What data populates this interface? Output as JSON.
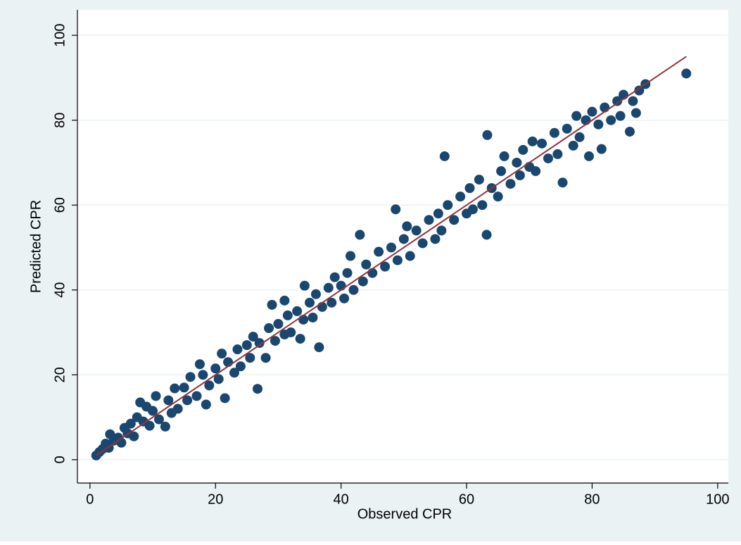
{
  "chart_data": {
    "type": "scatter",
    "x_label": "Observed CPR",
    "y_label": "Predicted CPR",
    "xlim": [
      -2,
      101.7
    ],
    "ylim": [
      -5.5,
      106
    ],
    "xticks": [
      0,
      20,
      40,
      60,
      80,
      100
    ],
    "yticks": [
      0,
      20,
      40,
      60,
      80,
      100
    ],
    "grid": true,
    "background": "#eaf2f3",
    "grid_color": "#eaf2f3",
    "series": [
      {
        "draw": "points",
        "color": "#1a476f",
        "x": [
          1,
          1.5,
          2,
          2.5,
          3,
          3.2,
          3.8,
          4.5,
          5,
          5.5,
          6,
          6.5,
          7,
          7.5,
          8,
          8.5,
          9,
          9.5,
          10,
          10.5,
          11,
          12,
          12.5,
          13,
          13.5,
          14,
          15,
          15.5,
          16,
          17,
          17.5,
          18,
          18.5,
          19,
          20,
          20.5,
          21,
          21.5,
          22,
          23,
          23.5,
          24,
          25,
          25.5,
          26,
          26.7,
          27,
          28,
          28.5,
          29,
          29.5,
          30,
          31,
          31.5,
          31,
          32,
          33,
          33.5,
          34,
          34.2,
          35,
          35.5,
          36,
          36.5,
          37,
          38,
          38.5,
          39,
          40,
          40.5,
          41,
          41.5,
          42,
          43,
          43.5,
          44,
          45,
          46,
          47,
          48,
          48.7,
          49,
          50,
          50.5,
          51,
          52,
          53,
          54,
          55,
          55.5,
          56.5,
          56,
          57,
          58,
          59,
          60,
          60.5,
          61,
          62,
          62.5,
          63.2,
          63.3,
          64,
          65,
          65.5,
          66,
          67,
          68,
          68.5,
          69,
          70,
          70.5,
          71,
          72,
          73,
          74,
          74.5,
          75.3,
          76,
          77,
          77.5,
          78,
          79,
          79.5,
          80,
          81,
          81.5,
          82,
          83,
          84,
          84.5,
          85,
          86,
          86.5,
          87,
          87.5,
          88.5,
          95
        ],
        "values": [
          1,
          1.8,
          2.5,
          3.8,
          2.8,
          6,
          4.5,
          5.2,
          4,
          7.5,
          6.2,
          8.5,
          5.5,
          10,
          13.5,
          9,
          12.5,
          8,
          11.5,
          15,
          9.5,
          7.8,
          14,
          11,
          16.8,
          12,
          17,
          14,
          19.5,
          15,
          22.5,
          20,
          13,
          17.5,
          21.5,
          19,
          25,
          14.5,
          23,
          20.5,
          26,
          22,
          27,
          24,
          29,
          16.7,
          27.5,
          24,
          31,
          36.5,
          28,
          32,
          29.5,
          34,
          37.5,
          30,
          35,
          28.5,
          33,
          41,
          37,
          33.5,
          39,
          26.5,
          36,
          40.5,
          37,
          43,
          41,
          38,
          44,
          48,
          40,
          53,
          42,
          46,
          44,
          49,
          45.5,
          50,
          59,
          47,
          52,
          55,
          48,
          54,
          51,
          56.5,
          52,
          58,
          71.5,
          54,
          60,
          56.5,
          62,
          58,
          64,
          59,
          66,
          60,
          53,
          76.5,
          64,
          62,
          68,
          71.5,
          65,
          70,
          67,
          73,
          69,
          75,
          68,
          74.5,
          71,
          77,
          72,
          65.3,
          78,
          74,
          81,
          76,
          80,
          71.5,
          82,
          79,
          73.2,
          83,
          80,
          84.5,
          81,
          86,
          77.3,
          84.5,
          81.7,
          87,
          88.5,
          91
        ]
      },
      {
        "draw": "line",
        "color": "#90353b",
        "x": [
          1,
          95
        ],
        "values": [
          1,
          95
        ]
      }
    ]
  }
}
